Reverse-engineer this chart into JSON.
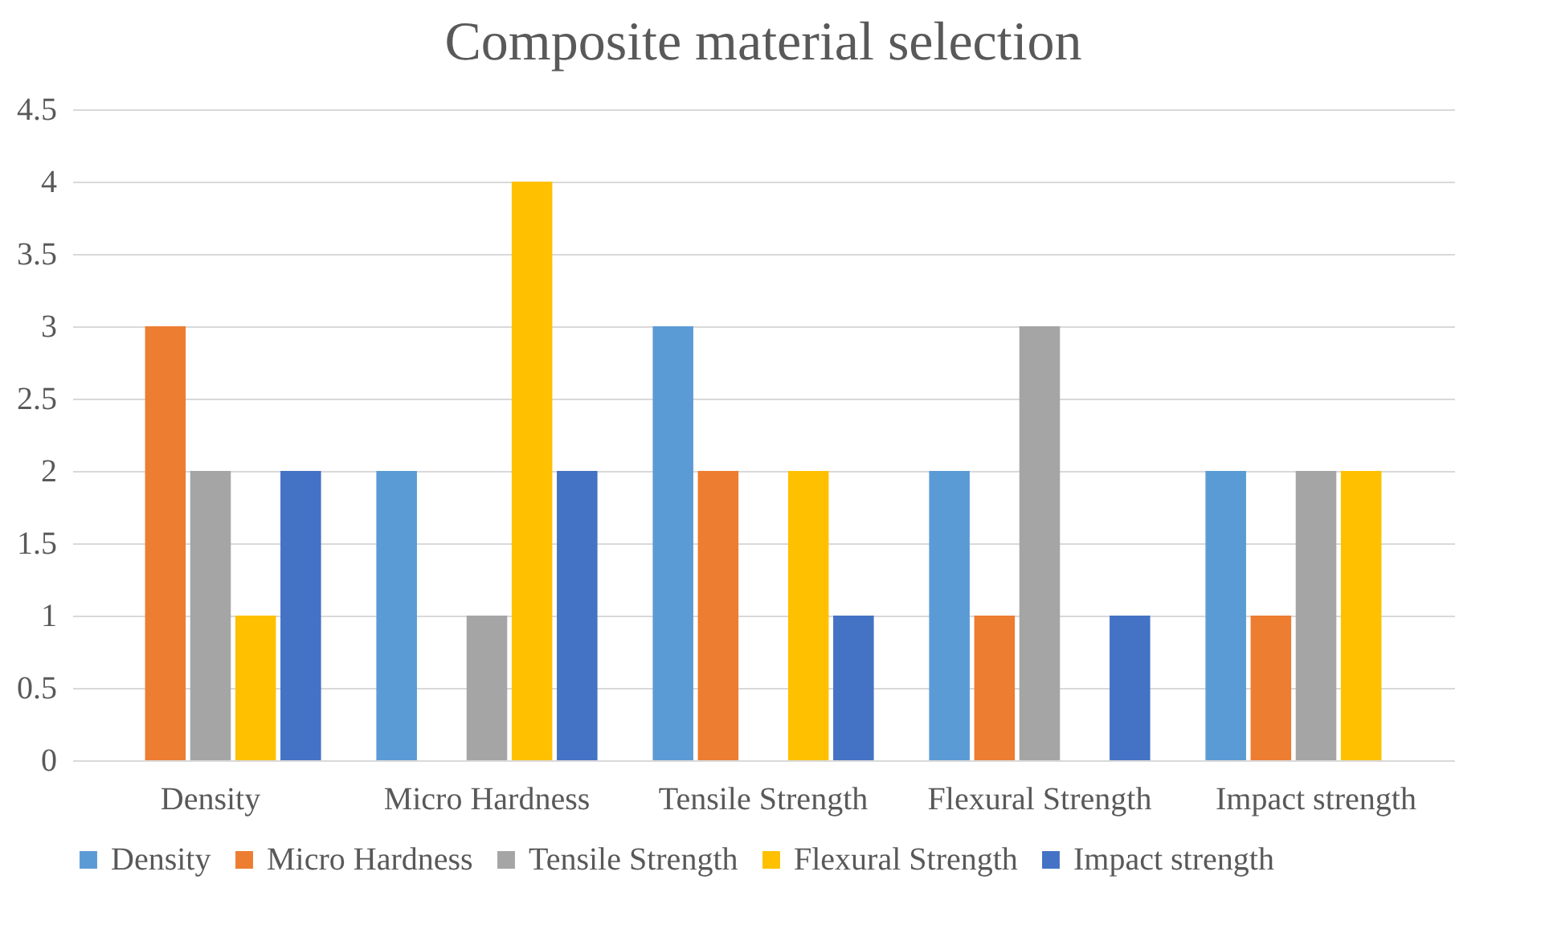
{
  "chart_data": {
    "type": "bar",
    "title": "Composite material selection",
    "categories": [
      "Density",
      "Micro Hardness",
      "Tensile Strength",
      "Flexural Strength",
      "Impact strength"
    ],
    "series": [
      {
        "name": "Density",
        "color": "#5b9bd5",
        "values": [
          0,
          2,
          3,
          2,
          2
        ]
      },
      {
        "name": "Micro Hardness",
        "color": "#ed7d31",
        "values": [
          3,
          0,
          2,
          1,
          1
        ]
      },
      {
        "name": "Tensile Strength",
        "color": "#a5a5a5",
        "values": [
          2,
          1,
          0,
          3,
          2
        ]
      },
      {
        "name": "Flexural Strength",
        "color": "#ffc000",
        "values": [
          1,
          4,
          2,
          0,
          2
        ]
      },
      {
        "name": "Impact strength",
        "color": "#4472c4",
        "values": [
          2,
          2,
          1,
          1,
          0
        ]
      }
    ],
    "ylim": [
      0,
      4.5
    ],
    "yticks": [
      0,
      0.5,
      1,
      1.5,
      2,
      2.5,
      3,
      3.5,
      4,
      4.5
    ],
    "grid": "y",
    "legend": "bottom"
  }
}
